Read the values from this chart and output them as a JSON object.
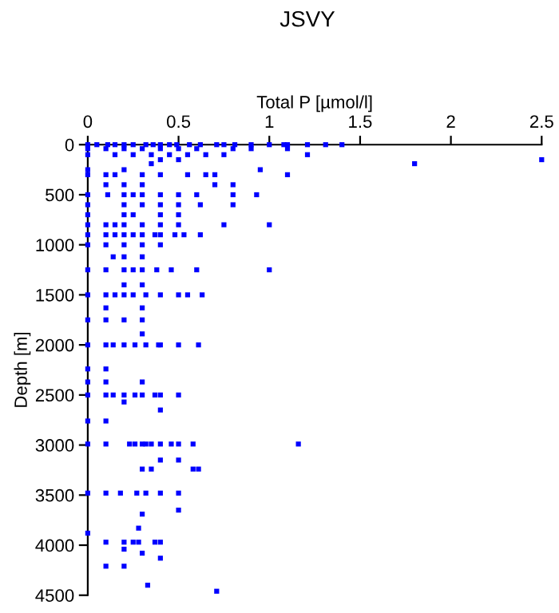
{
  "chart_data": {
    "type": "scatter",
    "title": "JSVY",
    "xlabel": "Total P [µmol/l]",
    "ylabel": "Depth [m]",
    "xlim": [
      0,
      2.5
    ],
    "xticks": [
      0,
      0.5,
      1,
      1.5,
      2,
      2.5
    ],
    "ylim": [
      4500,
      0
    ],
    "yticks": [
      0,
      500,
      1000,
      1500,
      2000,
      2500,
      3000,
      3500,
      4000,
      4500
    ],
    "grid": false,
    "marker": "square",
    "color": "#0000ff",
    "x": [
      0,
      0.05,
      0.11,
      0.15,
      0.2,
      0.25,
      0.32,
      0.36,
      0.4,
      0.45,
      0.49,
      0.56,
      0.62,
      0.71,
      0.75,
      0.81,
      0.9,
      1.0,
      1.08,
      1.1,
      1.21,
      1.31,
      1.4,
      0,
      0.1,
      0.2,
      0.3,
      0.4,
      0.5,
      0.6,
      0.8,
      0.9,
      1.1,
      0,
      0.15,
      0.25,
      0.35,
      0.45,
      0.55,
      0.65,
      0.75,
      1.21,
      2.5,
      0.4,
      0.5,
      1.8,
      0.35,
      0,
      0.95,
      0.2,
      0,
      0.1,
      0.15,
      0.3,
      0.4,
      0.55,
      0.65,
      0.7,
      1.1,
      0.1,
      0.2,
      0.3,
      0.7,
      0.8,
      0,
      0.11,
      0.2,
      0.25,
      0.3,
      0.4,
      0.5,
      0.6,
      0.8,
      0.93,
      0,
      0.2,
      0.3,
      0.4,
      0.5,
      0.62,
      0.8,
      0,
      0.2,
      0.25,
      0.4,
      0.5,
      0,
      0.1,
      0.15,
      0.2,
      0.3,
      0.4,
      0.5,
      0.75,
      1.0,
      0,
      0.1,
      0.15,
      0.2,
      0.25,
      0.3,
      0.37,
      0.4,
      0.48,
      0.53,
      0.62,
      0,
      0.1,
      0.2,
      0.3,
      0.4,
      0.14,
      0.2,
      0.3,
      0,
      0.1,
      0.2,
      0.25,
      0.3,
      0.38,
      0.46,
      0.6,
      1.0,
      0.2,
      0.3,
      0,
      0.1,
      0.15,
      0.2,
      0.25,
      0.32,
      0.4,
      0.5,
      0.55,
      0.63,
      0.1,
      0.3,
      0,
      0.1,
      0.2,
      0.3,
      0.3,
      0,
      0.1,
      0.14,
      0.2,
      0.26,
      0.32,
      0.39,
      0.4,
      0.5,
      0.61,
      0,
      0.1,
      0,
      0.1,
      0.3,
      0,
      0.1,
      0.14,
      0.2,
      0.26,
      0.3,
      0.37,
      0.4,
      0.5,
      0.2,
      0.4,
      0,
      0.1,
      0,
      0.1,
      0.23,
      0.26,
      0.3,
      0.32,
      0.35,
      0.4,
      0.46,
      0.5,
      0.58,
      1.16,
      0.4,
      0.5,
      0.3,
      0.35,
      0.58,
      0.61,
      0,
      0.1,
      0.18,
      0.27,
      0.32,
      0.4,
      0.5,
      0.5,
      0.3,
      0.28,
      0,
      0.1,
      0.2,
      0.25,
      0.28,
      0.37,
      0.4,
      0.2,
      0.3,
      0.4,
      0.1,
      0.2,
      0.33,
      0.71
    ],
    "values": [
      0,
      0,
      0,
      0,
      0,
      0,
      0,
      0,
      0,
      0,
      0,
      0,
      0,
      0,
      0,
      0,
      0,
      0,
      0,
      0,
      0,
      0,
      0,
      40,
      40,
      40,
      40,
      40,
      40,
      40,
      40,
      40,
      40,
      100,
      100,
      100,
      100,
      100,
      100,
      100,
      100,
      100,
      150,
      150,
      150,
      190,
      190,
      250,
      250,
      250,
      300,
      300,
      300,
      300,
      300,
      300,
      300,
      300,
      300,
      400,
      400,
      400,
      400,
      400,
      500,
      500,
      500,
      500,
      500,
      500,
      500,
      500,
      500,
      500,
      600,
      600,
      600,
      600,
      600,
      600,
      600,
      700,
      700,
      700,
      700,
      700,
      800,
      800,
      800,
      800,
      800,
      800,
      800,
      800,
      800,
      900,
      900,
      900,
      900,
      900,
      900,
      900,
      900,
      900,
      900,
      900,
      1000,
      1000,
      1000,
      1000,
      1000,
      1120,
      1120,
      1120,
      1250,
      1250,
      1250,
      1250,
      1250,
      1250,
      1250,
      1250,
      1250,
      1400,
      1400,
      1500,
      1500,
      1500,
      1500,
      1500,
      1500,
      1500,
      1500,
      1500,
      1500,
      1630,
      1630,
      1750,
      1750,
      1750,
      1750,
      1890,
      2000,
      2000,
      2000,
      2000,
      2000,
      2000,
      2000,
      2000,
      2000,
      2000,
      2240,
      2240,
      2370,
      2370,
      2370,
      2500,
      2500,
      2500,
      2500,
      2500,
      2500,
      2500,
      2500,
      2500,
      2570,
      2650,
      2760,
      2760,
      2990,
      2990,
      2990,
      2990,
      2990,
      2990,
      2990,
      2990,
      2990,
      2990,
      2990,
      2990,
      3150,
      3150,
      3240,
      3240,
      3240,
      3240,
      3480,
      3480,
      3480,
      3480,
      3480,
      3480,
      3480,
      3650,
      3690,
      3830,
      3880,
      3970,
      3970,
      3970,
      3970,
      3970,
      3970,
      4040,
      4080,
      4130,
      4210,
      4210,
      4400,
      4460
    ]
  }
}
